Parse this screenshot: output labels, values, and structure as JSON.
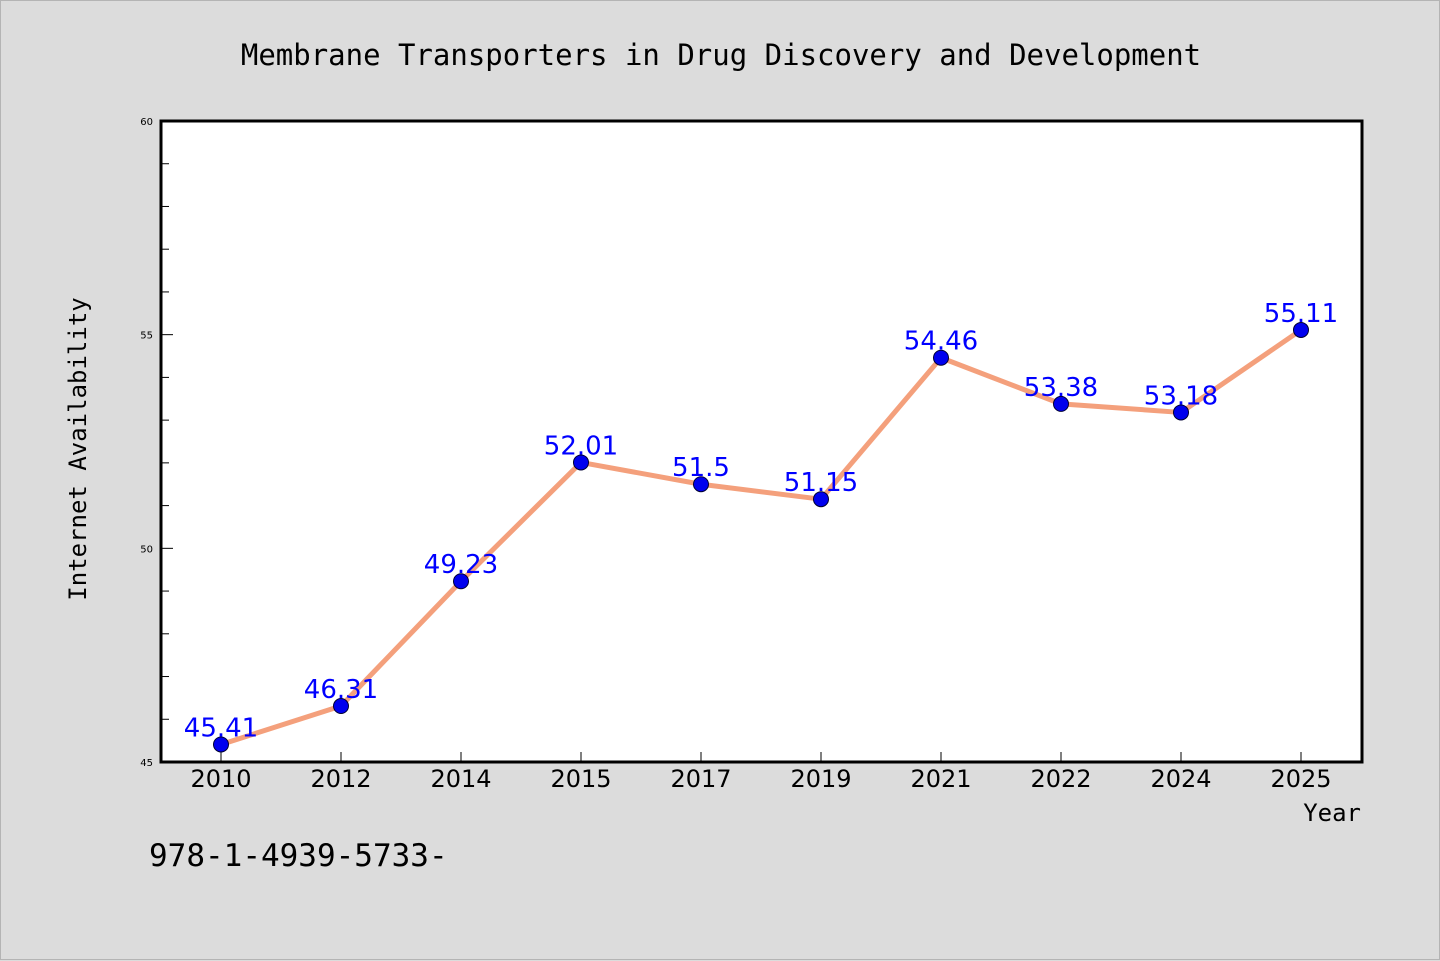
{
  "chart_data": {
    "type": "line",
    "title": "Membrane Transporters in Drug Discovery and Development",
    "xlabel": "Year",
    "ylabel": "Internet Availability",
    "categories": [
      "2010",
      "2012",
      "2014",
      "2015",
      "2017",
      "2019",
      "2021",
      "2022",
      "2024",
      "2025"
    ],
    "series": [
      {
        "values": [
          45.41,
          46.31,
          49.23,
          52.01,
          51.5,
          51.15,
          54.46,
          53.38,
          53.18,
          55.11
        ],
        "data_labels": [
          "45.41",
          "46.31",
          "49.23",
          "52.01",
          "51.5",
          "51.15",
          "54.46",
          "53.38",
          "53.18",
          "55.11"
        ]
      }
    ],
    "ylim": [
      45,
      60
    ],
    "yticks": [
      "45",
      "50",
      "55",
      "60"
    ],
    "grid": false,
    "legend": "none",
    "colors": {
      "line": "#f4a07c",
      "marker": "#0000ee",
      "label": "#0000ff",
      "background": "#dcdcdc",
      "plot_background": "#ffffff"
    }
  },
  "footer": {
    "text": "978-1-4939-5733-"
  }
}
